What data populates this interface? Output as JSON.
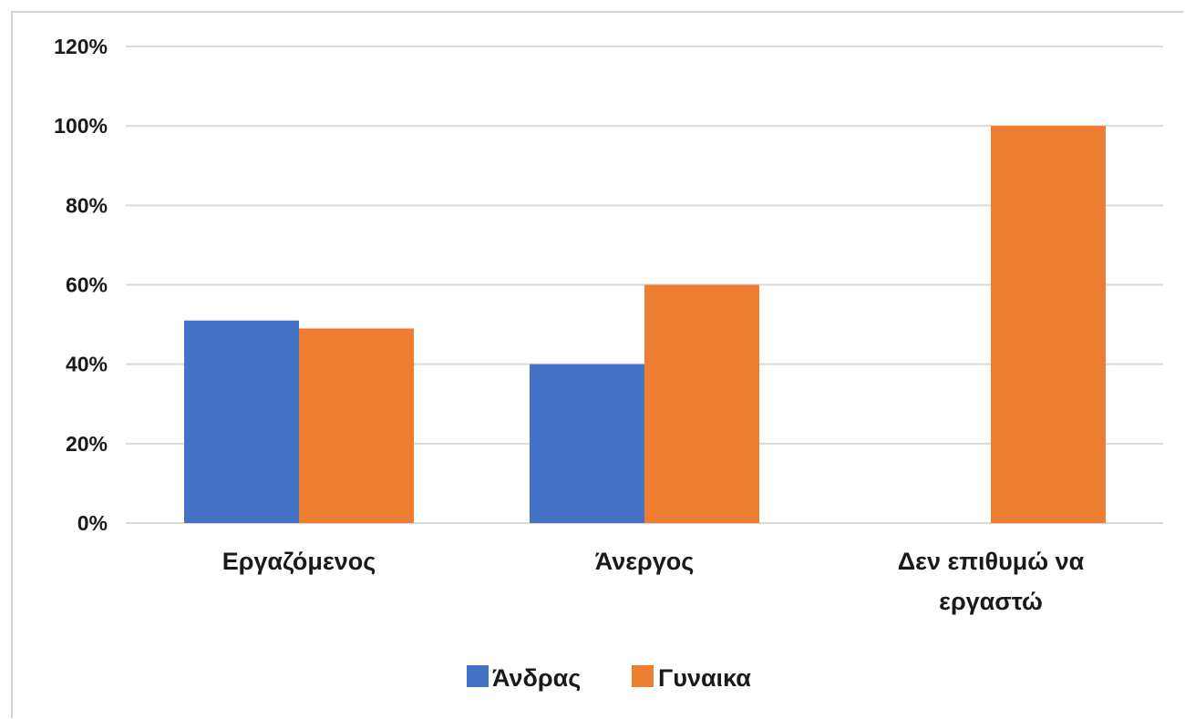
{
  "chart_data": {
    "type": "bar",
    "title": "",
    "xlabel": "",
    "ylabel": "",
    "categories": [
      [
        "Εργαζόμενος"
      ],
      [
        "Άνεργος"
      ],
      [
        "Δεν επιθυμώ να",
        "εργαστώ"
      ]
    ],
    "series": [
      {
        "name": "Άνδρας",
        "color": "#4472C4",
        "values": [
          51,
          40,
          0
        ]
      },
      {
        "name": "Γυναίκα",
        "color": "#ED7D31",
        "values": [
          49,
          60,
          100
        ]
      }
    ],
    "ylim": [
      0,
      120
    ],
    "yticks": [
      0,
      20,
      40,
      60,
      80,
      100,
      120
    ],
    "ytick_labels": [
      "0%",
      "20%",
      "40%",
      "60%",
      "80%",
      "100%",
      "120%"
    ],
    "grid": true,
    "legend_position": "bottom",
    "legend": [
      {
        "label": "Άνδρας",
        "color": "#4472C4"
      },
      {
        "label": "Γυναικα",
        "color": "#ED7D31"
      }
    ]
  }
}
